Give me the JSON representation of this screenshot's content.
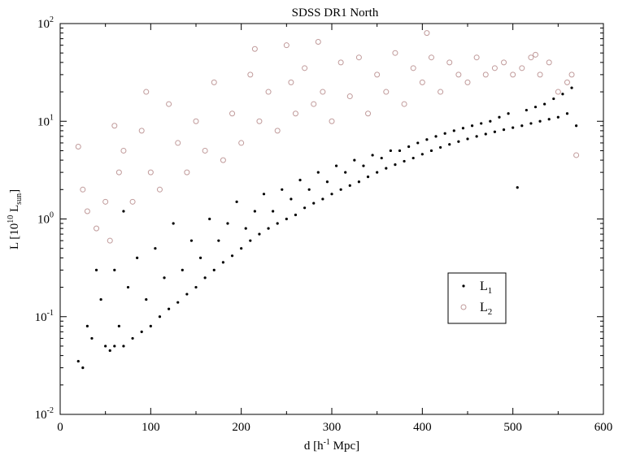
{
  "chart_data": {
    "type": "scatter",
    "title": "SDSS DR1 North",
    "xlabel": {
      "main": "d [h",
      "sup": "-1",
      "rest": " Mpc]"
    },
    "ylabel": {
      "main": "L [10",
      "sup": "10",
      "mid": " L",
      "sub": "sun",
      "rest": "]"
    },
    "x_range": [
      0,
      600
    ],
    "y_range": [
      0.01,
      100
    ],
    "y_scale": "log",
    "grid": false,
    "x_ticks": [
      {
        "value": 0,
        "label": "0"
      },
      {
        "value": 100,
        "label": "100"
      },
      {
        "value": 200,
        "label": "200"
      },
      {
        "value": 300,
        "label": "300"
      },
      {
        "value": 400,
        "label": "400"
      },
      {
        "value": 500,
        "label": "500"
      },
      {
        "value": 600,
        "label": "600"
      }
    ],
    "y_ticks": [
      {
        "value": 0.01,
        "base": "10",
        "exp": "-2"
      },
      {
        "value": 0.1,
        "base": "10",
        "exp": "-1"
      },
      {
        "value": 1,
        "base": "10",
        "exp": "0"
      },
      {
        "value": 10,
        "base": "10",
        "exp": "1"
      },
      {
        "value": 100,
        "base": "10",
        "exp": "2"
      }
    ],
    "legend_position": "lower-right",
    "series": [
      {
        "name": {
          "main": "L",
          "sub": "1"
        },
        "marker": "dot",
        "color": "#000000",
        "points": [
          [
            20,
            0.035
          ],
          [
            25,
            0.03
          ],
          [
            30,
            0.08
          ],
          [
            35,
            0.06
          ],
          [
            40,
            0.3
          ],
          [
            45,
            0.15
          ],
          [
            50,
            0.05
          ],
          [
            55,
            0.045
          ],
          [
            60,
            0.05
          ],
          [
            60,
            0.3
          ],
          [
            65,
            0.08
          ],
          [
            70,
            0.05
          ],
          [
            70,
            1.2
          ],
          [
            75,
            0.2
          ],
          [
            80,
            0.06
          ],
          [
            85,
            0.4
          ],
          [
            90,
            0.07
          ],
          [
            95,
            0.15
          ],
          [
            100,
            0.08
          ],
          [
            105,
            0.5
          ],
          [
            110,
            0.1
          ],
          [
            115,
            0.25
          ],
          [
            120,
            0.12
          ],
          [
            125,
            0.9
          ],
          [
            130,
            0.14
          ],
          [
            135,
            0.3
          ],
          [
            140,
            0.17
          ],
          [
            145,
            0.6
          ],
          [
            150,
            0.2
          ],
          [
            155,
            0.4
          ],
          [
            160,
            0.25
          ],
          [
            165,
            1.0
          ],
          [
            170,
            0.3
          ],
          [
            175,
            0.6
          ],
          [
            180,
            0.36
          ],
          [
            185,
            0.9
          ],
          [
            190,
            0.42
          ],
          [
            195,
            1.5
          ],
          [
            200,
            0.5
          ],
          [
            205,
            0.8
          ],
          [
            210,
            0.6
          ],
          [
            215,
            1.2
          ],
          [
            220,
            0.7
          ],
          [
            225,
            1.8
          ],
          [
            230,
            0.8
          ],
          [
            235,
            1.2
          ],
          [
            240,
            0.9
          ],
          [
            245,
            2.0
          ],
          [
            250,
            1.0
          ],
          [
            255,
            1.6
          ],
          [
            260,
            1.1
          ],
          [
            265,
            2.5
          ],
          [
            270,
            1.3
          ],
          [
            275,
            2.0
          ],
          [
            280,
            1.45
          ],
          [
            285,
            3.0
          ],
          [
            290,
            1.6
          ],
          [
            295,
            2.4
          ],
          [
            300,
            1.8
          ],
          [
            305,
            3.5
          ],
          [
            310,
            2.0
          ],
          [
            315,
            3.0
          ],
          [
            320,
            2.2
          ],
          [
            325,
            4.0
          ],
          [
            330,
            2.4
          ],
          [
            335,
            3.5
          ],
          [
            340,
            2.7
          ],
          [
            345,
            4.5
          ],
          [
            350,
            3.0
          ],
          [
            355,
            4.2
          ],
          [
            360,
            3.3
          ],
          [
            365,
            5.0
          ],
          [
            370,
            3.6
          ],
          [
            375,
            5.0
          ],
          [
            380,
            3.9
          ],
          [
            385,
            5.5
          ],
          [
            390,
            4.2
          ],
          [
            395,
            6.0
          ],
          [
            400,
            4.6
          ],
          [
            405,
            6.5
          ],
          [
            410,
            5.0
          ],
          [
            415,
            7.0
          ],
          [
            420,
            5.4
          ],
          [
            425,
            7.5
          ],
          [
            430,
            5.8
          ],
          [
            435,
            8.0
          ],
          [
            440,
            6.2
          ],
          [
            445,
            8.5
          ],
          [
            450,
            6.6
          ],
          [
            455,
            9.0
          ],
          [
            460,
            7.0
          ],
          [
            465,
            9.5
          ],
          [
            470,
            7.4
          ],
          [
            475,
            10
          ],
          [
            480,
            7.8
          ],
          [
            485,
            11
          ],
          [
            490,
            8.2
          ],
          [
            495,
            12
          ],
          [
            500,
            8.6
          ],
          [
            505,
            2.1
          ],
          [
            510,
            9.0
          ],
          [
            515,
            13
          ],
          [
            520,
            9.5
          ],
          [
            525,
            14
          ],
          [
            530,
            10
          ],
          [
            535,
            15
          ],
          [
            540,
            10.5
          ],
          [
            545,
            17
          ],
          [
            550,
            11
          ],
          [
            555,
            19
          ],
          [
            560,
            12
          ],
          [
            565,
            22
          ],
          [
            570,
            9
          ]
        ]
      },
      {
        "name": {
          "main": "L",
          "sub": "2"
        },
        "marker": "open-circle",
        "color": "#c09a9a",
        "points": [
          [
            20,
            5.5
          ],
          [
            25,
            2.0
          ],
          [
            30,
            1.2
          ],
          [
            40,
            0.8
          ],
          [
            50,
            1.5
          ],
          [
            55,
            0.6
          ],
          [
            60,
            9
          ],
          [
            65,
            3
          ],
          [
            70,
            5
          ],
          [
            80,
            1.5
          ],
          [
            90,
            8
          ],
          [
            95,
            20
          ],
          [
            100,
            3
          ],
          [
            110,
            2
          ],
          [
            120,
            15
          ],
          [
            130,
            6
          ],
          [
            140,
            3
          ],
          [
            150,
            10
          ],
          [
            160,
            5
          ],
          [
            170,
            25
          ],
          [
            180,
            4
          ],
          [
            190,
            12
          ],
          [
            200,
            6
          ],
          [
            210,
            30
          ],
          [
            215,
            55
          ],
          [
            220,
            10
          ],
          [
            230,
            20
          ],
          [
            240,
            8
          ],
          [
            250,
            60
          ],
          [
            255,
            25
          ],
          [
            260,
            12
          ],
          [
            270,
            35
          ],
          [
            280,
            15
          ],
          [
            285,
            65
          ],
          [
            290,
            20
          ],
          [
            300,
            10
          ],
          [
            310,
            40
          ],
          [
            320,
            18
          ],
          [
            330,
            45
          ],
          [
            340,
            12
          ],
          [
            350,
            30
          ],
          [
            360,
            20
          ],
          [
            370,
            50
          ],
          [
            380,
            15
          ],
          [
            390,
            35
          ],
          [
            400,
            25
          ],
          [
            405,
            80
          ],
          [
            410,
            45
          ],
          [
            420,
            20
          ],
          [
            430,
            40
          ],
          [
            440,
            30
          ],
          [
            450,
            25
          ],
          [
            460,
            45
          ],
          [
            470,
            30
          ],
          [
            480,
            35
          ],
          [
            490,
            40
          ],
          [
            500,
            30
          ],
          [
            510,
            35
          ],
          [
            520,
            45
          ],
          [
            525,
            48
          ],
          [
            530,
            30
          ],
          [
            540,
            40
          ],
          [
            550,
            20
          ],
          [
            560,
            25
          ],
          [
            565,
            30
          ],
          [
            570,
            4.5
          ]
        ]
      }
    ]
  }
}
